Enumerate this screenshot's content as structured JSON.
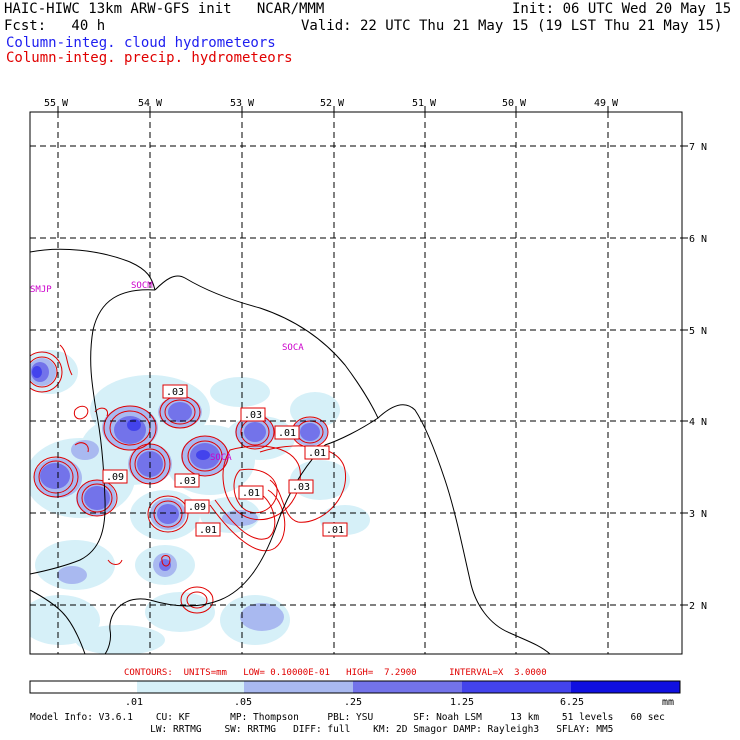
{
  "header": {
    "model_line": "HAIC-HIWC 13km ARW-GFS init   NCAR/MMM",
    "init_line": "Init: 06 UTC Wed 20 May 15",
    "fcst_line": "Fcst:   40 h",
    "valid_line": "Valid: 22 UTC Thu 21 May 15 (19 LST Thu 21 May 15)",
    "legend_cloud": "Column-integ. cloud hydrometeors",
    "legend_precip": "Column-integ. precip. hydrometeors"
  },
  "map": {
    "lon_labels": [
      "55 W",
      "54 W",
      "53 W",
      "52 W",
      "51 W",
      "50 W",
      "49 W"
    ],
    "lat_labels": [
      "7 N",
      "6 N",
      "5 N",
      "4 N",
      "3 N",
      "2 N"
    ],
    "stations": [
      "SMJP",
      "SOCM",
      "SOCA",
      "SOCA"
    ],
    "contour_labels": [
      ".03",
      ".03",
      ".01",
      ".01",
      ".09",
      ".03",
      ".01",
      ".03",
      ".09",
      ".01",
      ".01"
    ],
    "colors": {
      "cloud_fill_1": "#d6f0f8",
      "cloud_fill_2": "#a9b9f0",
      "cloud_fill_3": "#7373ea",
      "cloud_fill_4": "#4343ec",
      "cloud_fill_5": "#1010e0",
      "contour": "#e00000",
      "station": "#cc00cc",
      "grid": "#000000"
    }
  },
  "contour_info": {
    "text": "CONTOURS:  UNITS=mm   LOW= 0.10000E-01   HIGH=  7.2900      INTERVAL=X  3.0000"
  },
  "colorbar": {
    "labels": [
      ".01",
      ".05",
      ".25",
      "1.25",
      "6.25"
    ],
    "unit": "mm",
    "colors": [
      "#ffffff",
      "#d6f0f8",
      "#a9b9f0",
      "#7373ea",
      "#4343ec",
      "#1010e0"
    ]
  },
  "model_info": {
    "line1": "Model Info: V3.6.1    CU: KF       MP: Thompson     PBL: YSU       SF: Noah LSM     13 km    51 levels   60 sec",
    "line2": "                     LW: RRTMG    SW: RRTMG   DIFF: full    KM: 2D Smagor DAMP: Rayleigh3   SFLAY: MM5"
  }
}
